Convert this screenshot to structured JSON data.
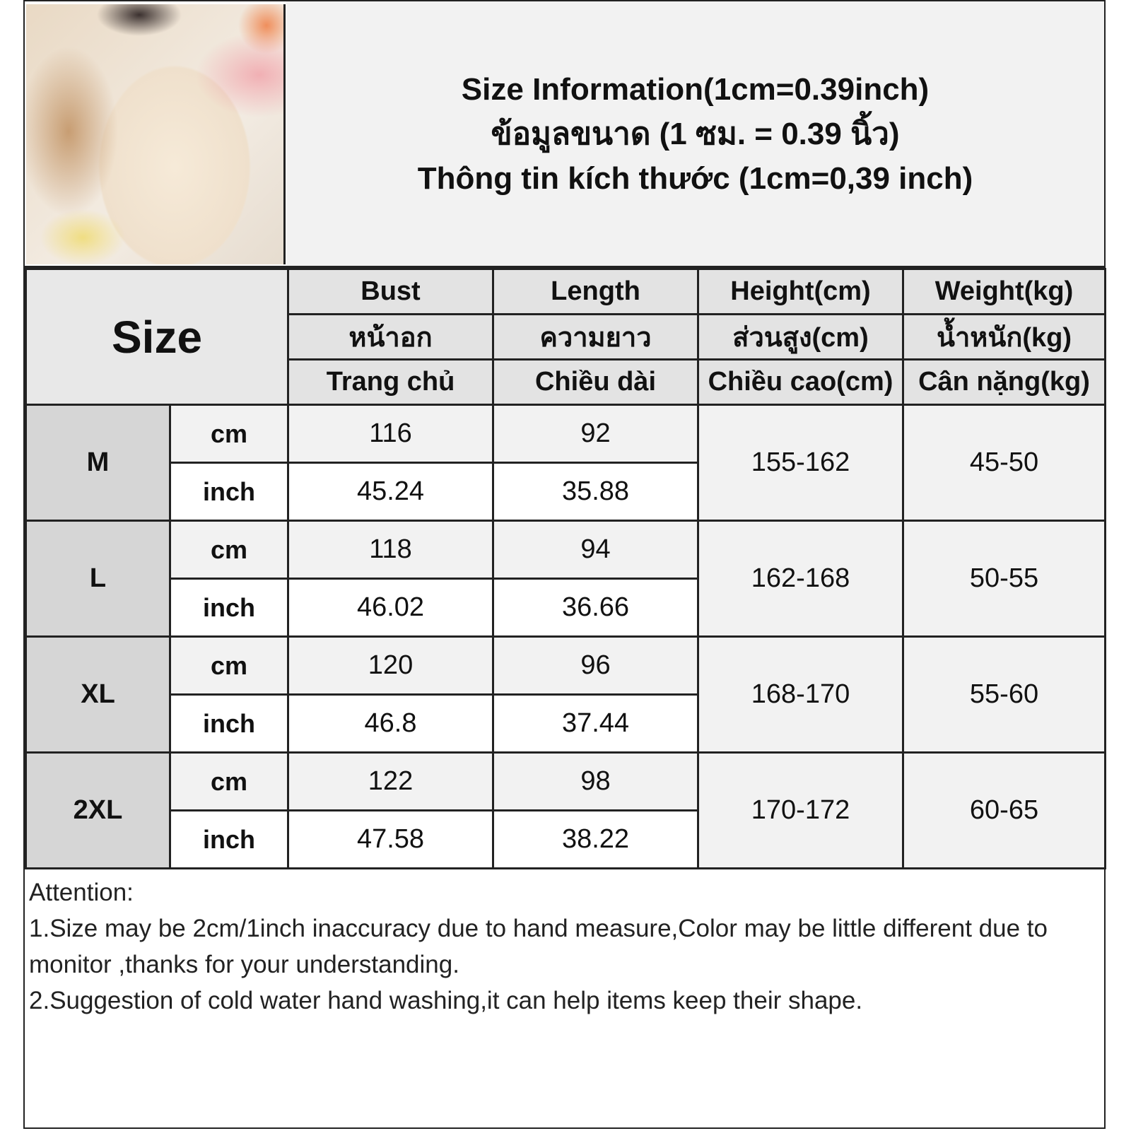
{
  "title_lines": [
    "Size Information(1cm=0.39inch)",
    "ข้อมูลขนาด (1 ซม. = 0.39 นิ้ว)",
    "Thông tin kích thước (1cm=0,39 inch)"
  ],
  "size_header": "Size",
  "columns": [
    {
      "en": "Bust",
      "th": "หน้าอก",
      "vi": "Trang chủ"
    },
    {
      "en": "Length",
      "th": "ความยาว",
      "vi": "Chiều dài"
    },
    {
      "en": "Height(cm)",
      "th": "ส่วนสูง(cm)",
      "vi": "Chiều cao(cm)"
    },
    {
      "en": "Weight(kg)",
      "th": "น้ำหนัก(kg)",
      "vi": "Cân nặng(kg)"
    }
  ],
  "units": {
    "cm": "cm",
    "inch": "inch"
  },
  "rows": [
    {
      "size": "M",
      "bust_cm": "116",
      "length_cm": "92",
      "bust_in": "45.24",
      "length_in": "35.88",
      "height": "155-162",
      "weight": "45-50"
    },
    {
      "size": "L",
      "bust_cm": "118",
      "length_cm": "94",
      "bust_in": "46.02",
      "length_in": "36.66",
      "height": "162-168",
      "weight": "50-55"
    },
    {
      "size": "XL",
      "bust_cm": "120",
      "length_cm": "96",
      "bust_in": "46.8",
      "length_in": "37.44",
      "height": "168-170",
      "weight": "55-60"
    },
    {
      "size": "2XL",
      "bust_cm": "122",
      "length_cm": "98",
      "bust_in": "47.58",
      "length_in": "38.22",
      "height": "170-172",
      "weight": "60-65"
    }
  ],
  "notes": [
    "Attention:",
    "1.Size may be 2cm/1inch inaccuracy due to hand measure,Color may be little different due to monitor ,thanks for your understanding.",
    "2.Suggestion of cold water hand washing,it can help items keep their shape."
  ]
}
